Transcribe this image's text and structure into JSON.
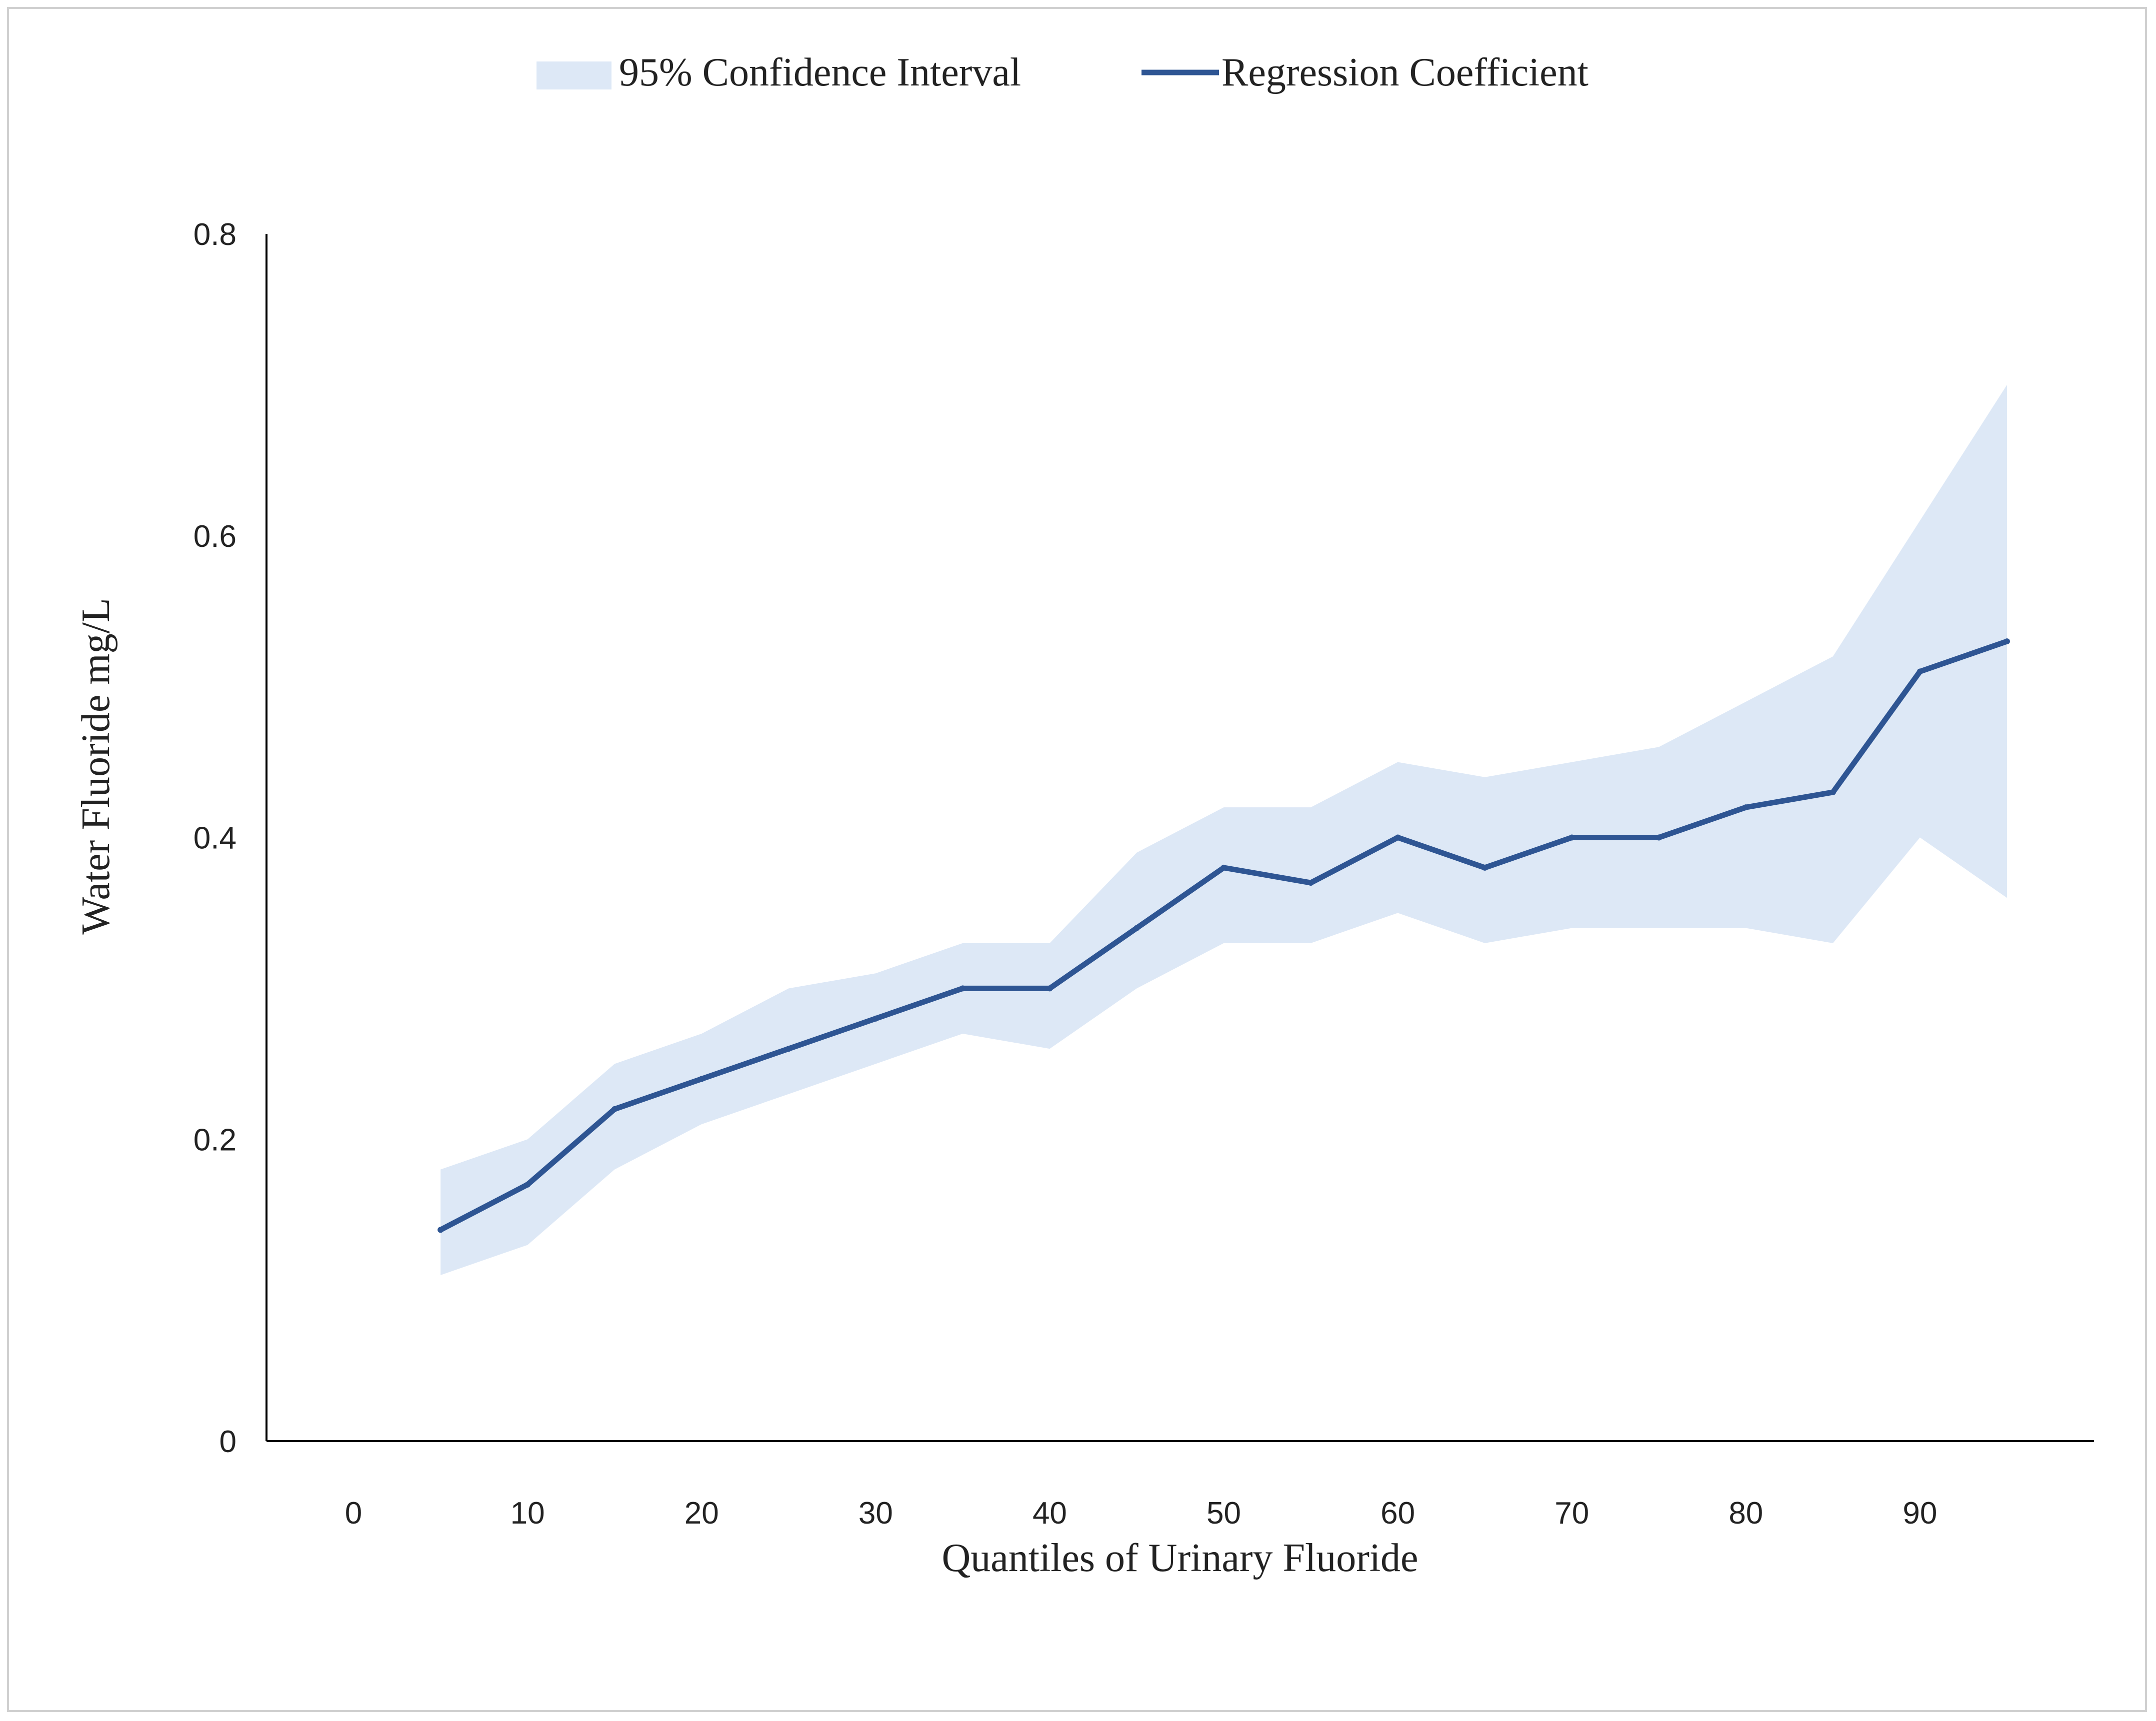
{
  "chart_data": {
    "type": "line",
    "title": "",
    "xlabel": "Quantiles of Urinary Fluoride",
    "ylabel": "Water Fluoride mg/L",
    "xlim": [
      -5,
      100
    ],
    "ylim": [
      0,
      0.8
    ],
    "x_ticks": [
      0,
      10,
      20,
      30,
      40,
      50,
      60,
      70,
      80,
      90
    ],
    "x_tick_labels": [
      "0",
      "10",
      "20",
      "30",
      "40",
      "50",
      "60",
      "70",
      "80",
      "90"
    ],
    "y_ticks": [
      0,
      0.2,
      0.4,
      0.6,
      0.8
    ],
    "y_tick_labels": [
      "0",
      "0.2",
      "0.4",
      "0.6",
      "0.8"
    ],
    "grid": false,
    "legend_position": "top-center",
    "x": [
      5,
      10,
      15,
      20,
      25,
      30,
      35,
      40,
      45,
      50,
      55,
      60,
      65,
      70,
      75,
      80,
      85,
      90,
      95
    ],
    "series": [
      {
        "name": "Regression Coefficient",
        "kind": "line",
        "color": "#2e5593",
        "values": [
          0.14,
          0.17,
          0.22,
          0.24,
          0.26,
          0.28,
          0.3,
          0.3,
          0.34,
          0.38,
          0.37,
          0.4,
          0.38,
          0.4,
          0.4,
          0.42,
          0.43,
          0.51,
          0.53
        ]
      },
      {
        "name": "95% Confidence Interval",
        "kind": "band",
        "color": "#dde8f6",
        "lower": [
          0.11,
          0.13,
          0.18,
          0.21,
          0.23,
          0.25,
          0.27,
          0.26,
          0.3,
          0.33,
          0.33,
          0.35,
          0.33,
          0.34,
          0.34,
          0.34,
          0.33,
          0.4,
          0.36
        ],
        "upper": [
          0.18,
          0.2,
          0.25,
          0.27,
          0.3,
          0.31,
          0.33,
          0.33,
          0.39,
          0.42,
          0.42,
          0.45,
          0.44,
          0.45,
          0.46,
          0.49,
          0.52,
          0.61,
          0.7
        ]
      }
    ],
    "legend": [
      {
        "label": "95% Confidence Interval",
        "kind": "band"
      },
      {
        "label": "Regression Coefficient",
        "kind": "line"
      }
    ]
  }
}
